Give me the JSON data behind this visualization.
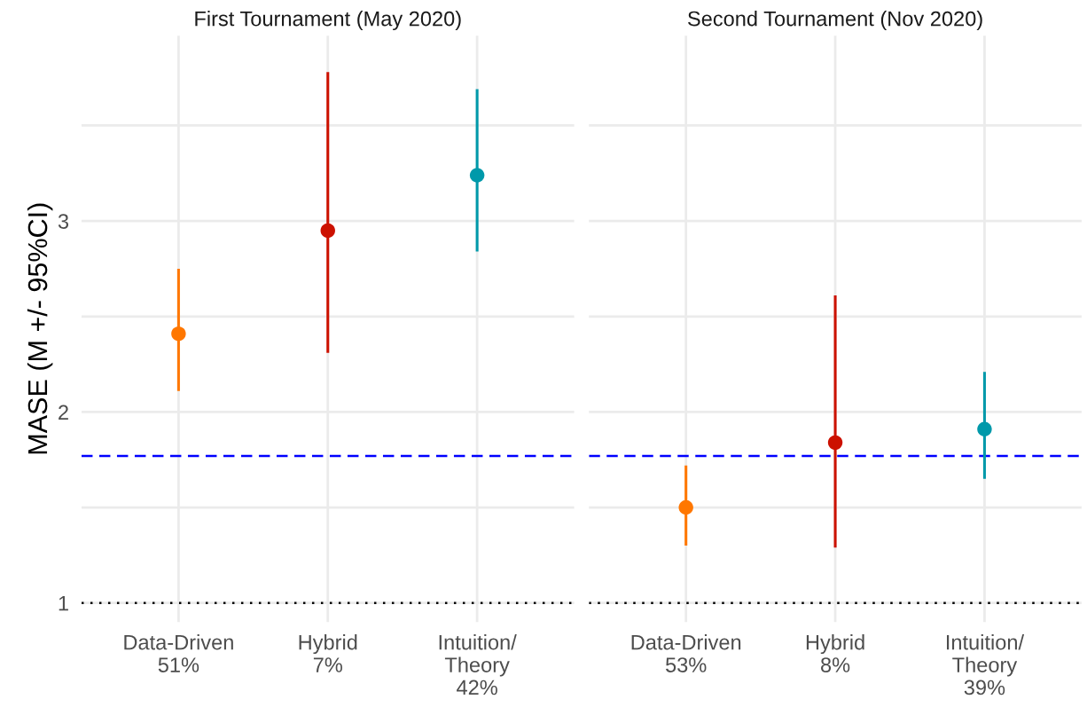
{
  "chart_data": [
    {
      "type": "scatter",
      "title": "First Tournament (May 2020)",
      "ylabel": "MASE (M +/- 95%CI)",
      "categories": [
        "Data-Driven\n51%",
        "Hybrid\n7%",
        "Intuition/\nTheory\n42%"
      ],
      "values": [
        2.41,
        2.95,
        3.24
      ],
      "errors": [
        [
          2.11,
          2.75
        ],
        [
          2.31,
          3.78
        ],
        [
          2.84,
          3.69
        ]
      ],
      "colors": [
        "#ff7700",
        "#cc1100",
        "#0099aa"
      ],
      "marker": "circle",
      "grid": true,
      "legend": false,
      "ylim": [
        0.9,
        3.97
      ],
      "yticks": [
        1,
        {
          "value": 1.5,
          "label": null
        },
        2,
        {
          "value": 2.5,
          "label": null
        },
        3,
        {
          "value": 3.5,
          "label": null
        }
      ],
      "ref_lines": [
        {
          "axis": "y",
          "value": 1.77,
          "color": "#0000ff",
          "line_style": "dashed"
        },
        {
          "axis": "y",
          "value": 1,
          "color": "#000000",
          "line_style": "dotted"
        }
      ]
    },
    {
      "type": "scatter",
      "title": "Second Tournament (Nov 2020)",
      "categories": [
        "Data-Driven\n53%",
        "Hybrid\n8%",
        "Intuition/\nTheory\n39%"
      ],
      "values": [
        1.5,
        1.84,
        1.91
      ],
      "errors": [
        [
          1.3,
          1.72
        ],
        [
          1.29,
          2.61
        ],
        [
          1.65,
          2.21
        ]
      ],
      "colors": [
        "#ff7700",
        "#cc1100",
        "#0099aa"
      ],
      "marker": "circle",
      "grid": true,
      "legend": false,
      "tick_labels": "x",
      "ylim": [
        0.9,
        3.97
      ],
      "yticks": [
        1,
        {
          "value": 1.5,
          "label": null
        },
        2,
        {
          "value": 2.5,
          "label": null
        },
        3,
        {
          "value": 3.5,
          "label": null
        }
      ],
      "ref_lines": [
        {
          "axis": "y",
          "value": 1.77,
          "color": "#0000ff",
          "line_style": "dashed"
        },
        {
          "axis": "y",
          "value": 1,
          "color": "#000000",
          "line_style": "dotted"
        }
      ]
    }
  ]
}
